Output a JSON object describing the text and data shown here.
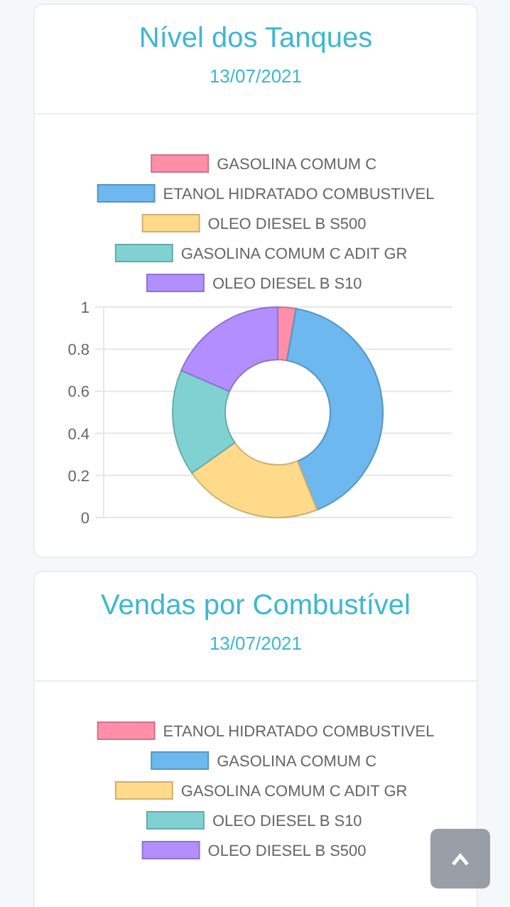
{
  "chart_data": [
    {
      "type": "donut",
      "title": "Nível dos Tanques",
      "subtitle": "13/07/2021",
      "legend": "top",
      "grid": true,
      "annotations": [
        "1",
        "0.8",
        "0.6",
        "0.4",
        "0.2",
        "0"
      ],
      "categories": [
        "GASOLINA COMUM C",
        "ETANOL HIDRATADO COMBUSTIVEL",
        "OLEO DIESEL B S500",
        "GASOLINA COMUM C ADIT GR",
        "OLEO DIESEL B S10"
      ],
      "values": [
        2.8,
        41.1,
        21.3,
        16.3,
        18.5
      ],
      "colors": [
        "#ff8fa8",
        "#6cb8ef",
        "#ffda8a",
        "#80d2d2",
        "#b28eff"
      ]
    },
    {
      "type": "other",
      "title": "Vendas por Combustível",
      "subtitle": "13/07/2021",
      "categories": [
        "ETANOL HIDRATADO COMBUSTIVEL",
        "GASOLINA COMUM C",
        "GASOLINA COMUM C ADIT GR",
        "OLEO DIESEL B S10",
        "OLEO DIESEL B S500"
      ],
      "colors": [
        "#ff8fa8",
        "#6cb8ef",
        "#ffda8a",
        "#80d2d2",
        "#b28eff"
      ]
    }
  ]
}
